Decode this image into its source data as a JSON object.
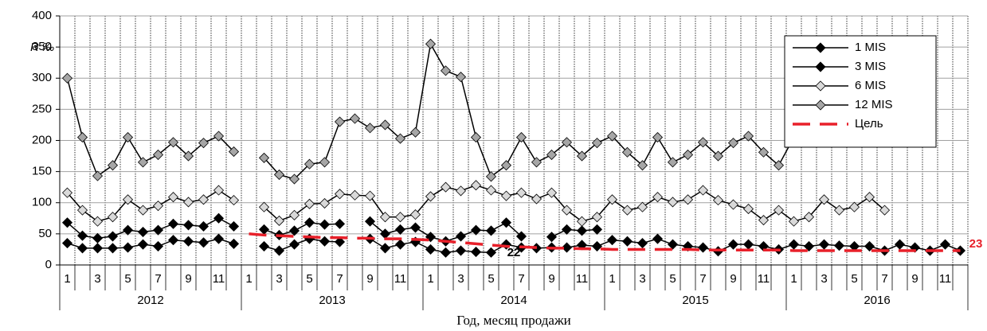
{
  "chart_data": {
    "type": "line",
    "y_label": "R ‰",
    "x_label": "Год, месяц продажи",
    "categories": [
      "1",
      null,
      "3",
      null,
      "5",
      null,
      "7",
      null,
      "9",
      null,
      "11",
      null,
      "1",
      null,
      "3",
      null,
      "5",
      null,
      "7",
      null,
      "9",
      null,
      "11",
      null,
      "1",
      null,
      "3",
      null,
      "5",
      null,
      "7",
      null,
      "9",
      null,
      "11",
      null,
      "1",
      null,
      "3",
      null,
      "5",
      null,
      "7",
      null,
      "9",
      null,
      "11",
      null,
      "1",
      null,
      "3",
      null,
      "5",
      null,
      "7",
      null,
      "9",
      null,
      "11",
      null
    ],
    "years": [
      "2012",
      "2013",
      "2014",
      "2015",
      "2016"
    ],
    "ylim": [
      0,
      400
    ],
    "yticks": [
      0,
      50,
      100,
      150,
      200,
      250,
      300,
      350,
      400
    ],
    "grid": true,
    "legend": "upper right",
    "series": [
      {
        "name": "1 MIS",
        "color": "#000000",
        "marker_color": "#000000",
        "values": [
          35,
          27,
          27,
          27,
          28,
          33,
          30,
          40,
          38,
          36,
          42,
          34,
          null,
          30,
          23,
          33,
          42,
          38,
          37,
          null,
          42,
          27,
          33,
          37,
          25,
          20,
          23,
          21,
          20,
          33,
          28,
          27,
          28,
          28,
          32,
          30,
          40,
          38,
          35,
          42,
          33,
          30,
          28,
          22,
          33,
          33,
          30,
          25,
          33,
          30,
          33,
          31,
          30,
          30,
          23,
          33,
          28,
          23,
          33,
          23
        ]
      },
      {
        "name": "3 MIS",
        "color": "#000000",
        "marker_color": "#000000",
        "values": [
          68,
          47,
          43,
          46,
          56,
          53,
          56,
          66,
          64,
          62,
          75,
          62,
          null,
          57,
          48,
          55,
          68,
          65,
          66,
          null,
          70,
          50,
          57,
          60,
          45,
          38,
          46,
          56,
          55,
          68,
          46,
          null,
          45,
          57,
          55,
          57,
          null,
          null,
          null,
          null,
          null,
          null,
          null,
          null,
          null,
          null,
          null,
          null,
          null,
          null,
          null,
          null,
          null,
          null,
          null,
          null,
          null,
          null,
          null,
          null
        ]
      },
      {
        "name": "6 MIS",
        "color": "#000000",
        "marker_color": "#d9d9d9",
        "values": [
          116,
          88,
          70,
          77,
          105,
          88,
          95,
          109,
          101,
          105,
          120,
          104,
          null,
          93,
          71,
          80,
          98,
          99,
          114,
          112,
          111,
          77,
          77,
          81,
          110,
          125,
          119,
          128,
          120,
          111,
          116,
          106,
          116,
          88,
          70,
          77,
          105,
          88,
          93,
          109,
          101,
          105,
          120,
          104,
          97,
          90,
          72,
          88,
          70,
          77,
          105,
          88,
          93,
          109,
          88,
          null,
          null,
          null,
          null,
          null
        ]
      },
      {
        "name": "12 MIS",
        "color": "#000000",
        "marker_color": "#a6a6a6",
        "values": [
          300,
          205,
          143,
          160,
          205,
          165,
          177,
          197,
          175,
          196,
          207,
          182,
          null,
          172,
          145,
          138,
          162,
          165,
          230,
          235,
          220,
          225,
          203,
          213,
          355,
          312,
          302,
          205,
          142,
          160,
          205,
          165,
          177,
          197,
          175,
          196,
          207,
          181,
          160,
          205,
          165,
          177,
          197,
          175,
          196,
          207,
          181,
          160,
          205,
          null,
          null,
          null,
          null,
          null,
          null,
          null,
          null,
          null,
          null,
          null
        ]
      },
      {
        "name": "Цель",
        "color": "#e8202a",
        "dashed": true,
        "values": [
          null,
          null,
          null,
          null,
          null,
          null,
          null,
          null,
          null,
          null,
          null,
          null,
          50,
          48,
          47,
          46,
          45,
          44,
          44,
          43,
          43,
          42,
          42,
          41,
          40,
          38,
          36,
          34,
          32,
          30,
          29,
          28,
          27,
          27,
          26,
          26,
          25,
          25,
          25,
          25,
          25,
          25,
          24,
          24,
          24,
          24,
          24,
          24,
          23,
          23,
          23,
          23,
          23,
          23,
          23,
          23,
          23,
          23,
          23,
          23
        ]
      }
    ],
    "annotations": [
      {
        "text": "22",
        "color": "#000000"
      },
      {
        "text": "23",
        "color": "#e8202a"
      }
    ]
  }
}
